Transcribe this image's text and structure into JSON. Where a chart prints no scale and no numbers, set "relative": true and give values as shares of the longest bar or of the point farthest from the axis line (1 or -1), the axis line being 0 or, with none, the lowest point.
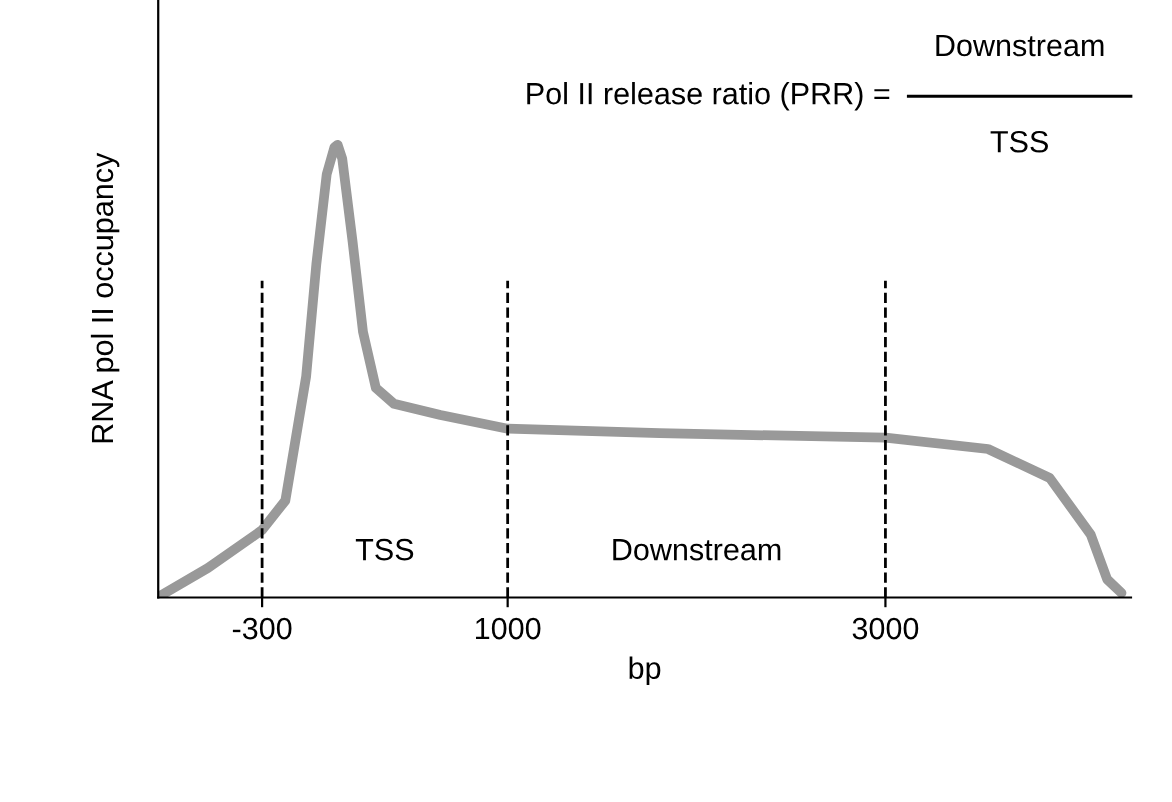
{
  "chart_data": {
    "type": "line",
    "relative": true,
    "xlabel": "bp",
    "ylabel": "RNA pol II occupancy",
    "xlim": [
      -850,
      4300
    ],
    "xticks": [
      -300,
      1000,
      3000
    ],
    "series": [
      {
        "color": "#999999",
        "x": [
          -834,
          -587,
          -300,
          -177,
          -67,
          -13,
          42,
          83,
          100,
          124,
          179,
          234,
          302,
          398,
          644,
          1000,
          1804,
          3000,
          3543,
          3870,
          4087,
          4174,
          4250
        ],
        "values": [
          0.005,
          0.065,
          0.149,
          0.214,
          0.488,
          0.736,
          0.935,
          0.995,
          1,
          0.97,
          0.786,
          0.587,
          0.463,
          0.428,
          0.403,
          0.373,
          0.363,
          0.353,
          0.328,
          0.264,
          0.139,
          0.04,
          0.01
        ]
      }
    ],
    "ref_lines": [
      {
        "axis": "x",
        "value": -300,
        "color": "#000000",
        "line_style": "dashed"
      },
      {
        "axis": "x",
        "value": 1000,
        "color": "#000000",
        "line_style": "dashed"
      },
      {
        "axis": "x",
        "value": 3000,
        "color": "#000000",
        "line_style": "dashed"
      }
    ],
    "annotations": [
      "Pol II release ratio (PRR) =",
      "Downstream",
      "TSS",
      "TSS",
      "Downstream"
    ],
    "grid": false,
    "line_style": "solid",
    "marker": "none"
  }
}
